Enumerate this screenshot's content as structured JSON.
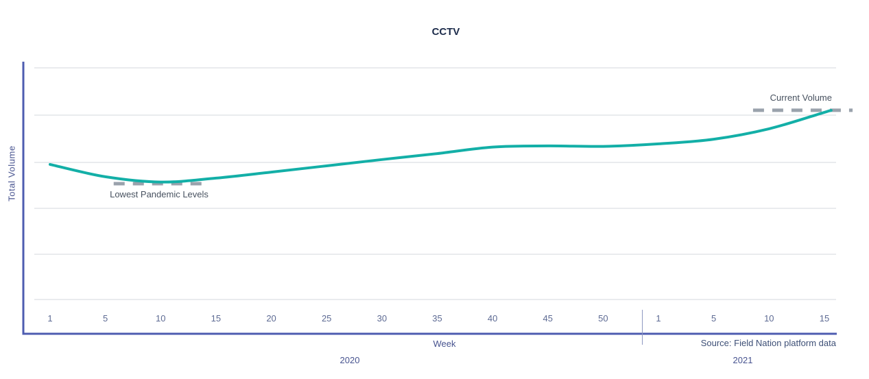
{
  "chart_data": {
    "type": "line",
    "title": "CCTV",
    "xlabel": "Week",
    "ylabel": "Total Volume",
    "source": "Source: Field Nation platform data",
    "x_tick_labels": [
      "1",
      "5",
      "10",
      "15",
      "20",
      "25",
      "30",
      "35",
      "40",
      "45",
      "50",
      "1",
      "5",
      "10",
      "15"
    ],
    "year_groups": [
      {
        "label": "2020",
        "tick_range": [
          0,
          10
        ]
      },
      {
        "label": "2021",
        "tick_range": [
          11,
          14
        ]
      }
    ],
    "y_tick_labels": [],
    "ylim": [
      0,
      100
    ],
    "grid": "horizontal-only",
    "series": [
      {
        "name": "Total Volume",
        "color": "#13afa7",
        "points": [
          [
            0,
            58.3
          ],
          [
            1,
            53.0
          ],
          [
            2,
            50.7
          ],
          [
            3,
            52.4
          ],
          [
            4,
            55.0
          ],
          [
            5,
            57.7
          ],
          [
            6,
            60.4
          ],
          [
            7,
            63.0
          ],
          [
            8,
            65.8
          ],
          [
            9,
            66.3
          ],
          [
            10,
            66.1
          ],
          [
            11,
            67.2
          ],
          [
            12,
            69.2
          ],
          [
            13,
            73.7
          ],
          [
            14,
            80.8
          ],
          [
            14.12,
            81.6
          ]
        ]
      }
    ],
    "annotations": [
      {
        "label": "Lowest Pandemic Levels",
        "value": 50.0,
        "from_tick": 1.15,
        "to_tick": 2.82,
        "label_position": "below"
      },
      {
        "label": "Current Volume",
        "value": 81.7,
        "from_tick": 12.71,
        "to_tick": 14.51,
        "label_position": "above"
      }
    ],
    "colors": {
      "line": "#13afa7",
      "axis": "#4e5cb0",
      "grid": "#d3d7de",
      "separator": "#8d97c0",
      "annotation_line": "#9aa2ac",
      "annotation_text": "#47515f",
      "tick_text": "#5d6a93",
      "label_text": "#47538f",
      "title_text": "#1d2c4b"
    }
  }
}
